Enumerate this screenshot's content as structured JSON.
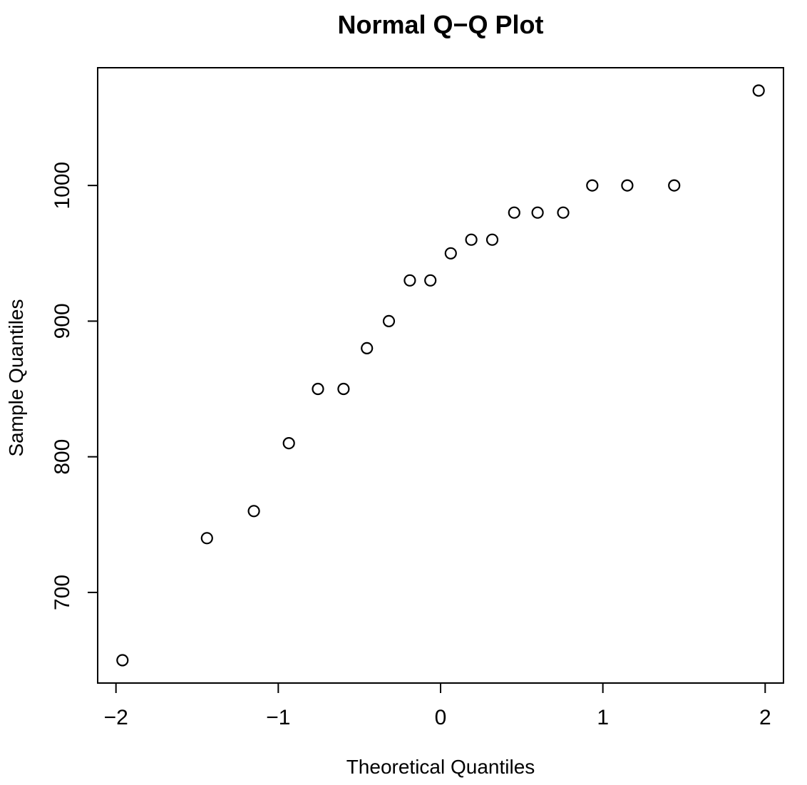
{
  "chart_data": {
    "type": "scatter",
    "title": "Normal Q−Q Plot",
    "xlabel": "Theoretical Quantiles",
    "ylabel": "Sample Quantiles",
    "x": [
      -1.96,
      -1.4395,
      -1.1503,
      -0.9346,
      -0.7554,
      -0.5978,
      -0.4538,
      -0.3186,
      -0.1891,
      -0.0627,
      0.0627,
      0.1891,
      0.3186,
      0.4538,
      0.5978,
      0.7554,
      0.9346,
      1.1503,
      1.4395,
      1.96
    ],
    "y": [
      650,
      740,
      760,
      810,
      850,
      850,
      880,
      900,
      930,
      930,
      950,
      960,
      960,
      980,
      980,
      980,
      1000,
      1000,
      1000,
      1070
    ],
    "xlim": [
      -2.1128,
      2.1128
    ],
    "ylim": [
      633.2,
      1086.8
    ],
    "x_ticks": [
      -2,
      -1,
      0,
      1,
      2
    ],
    "x_tick_labels": [
      "−2",
      "−1",
      "0",
      "1",
      "2"
    ],
    "y_ticks": [
      700,
      800,
      900,
      1000
    ],
    "y_tick_labels": [
      "700",
      "800",
      "900",
      "1000"
    ],
    "grid": false,
    "legend": "none",
    "marker": "open-circle",
    "colors": {
      "points": "#000000",
      "axis": "#000000",
      "background": "#ffffff"
    }
  }
}
